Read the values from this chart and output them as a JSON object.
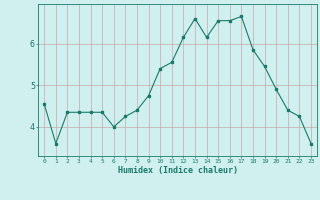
{
  "x": [
    0,
    1,
    2,
    3,
    4,
    5,
    6,
    7,
    8,
    9,
    10,
    11,
    12,
    13,
    14,
    15,
    16,
    17,
    18,
    19,
    20,
    21,
    22,
    23
  ],
  "y": [
    4.55,
    3.6,
    4.35,
    4.35,
    4.35,
    4.35,
    4.0,
    4.25,
    4.4,
    4.75,
    5.4,
    5.55,
    6.15,
    6.6,
    6.15,
    6.55,
    6.55,
    6.65,
    5.85,
    5.45,
    4.9,
    4.4,
    4.25,
    3.6
  ],
  "line_color": "#1a7a6a",
  "bg_color": "#d0f0f0",
  "grid_color": "#c8a8a8",
  "xlabel": "Humidex (Indice chaleur)",
  "yticks": [
    4,
    5,
    6
  ],
  "xticks": [
    0,
    1,
    2,
    3,
    4,
    5,
    6,
    7,
    8,
    9,
    10,
    11,
    12,
    13,
    14,
    15,
    16,
    17,
    18,
    19,
    20,
    21,
    22,
    23
  ],
  "xlim": [
    -0.5,
    23.5
  ],
  "ylim": [
    3.3,
    6.95
  ]
}
